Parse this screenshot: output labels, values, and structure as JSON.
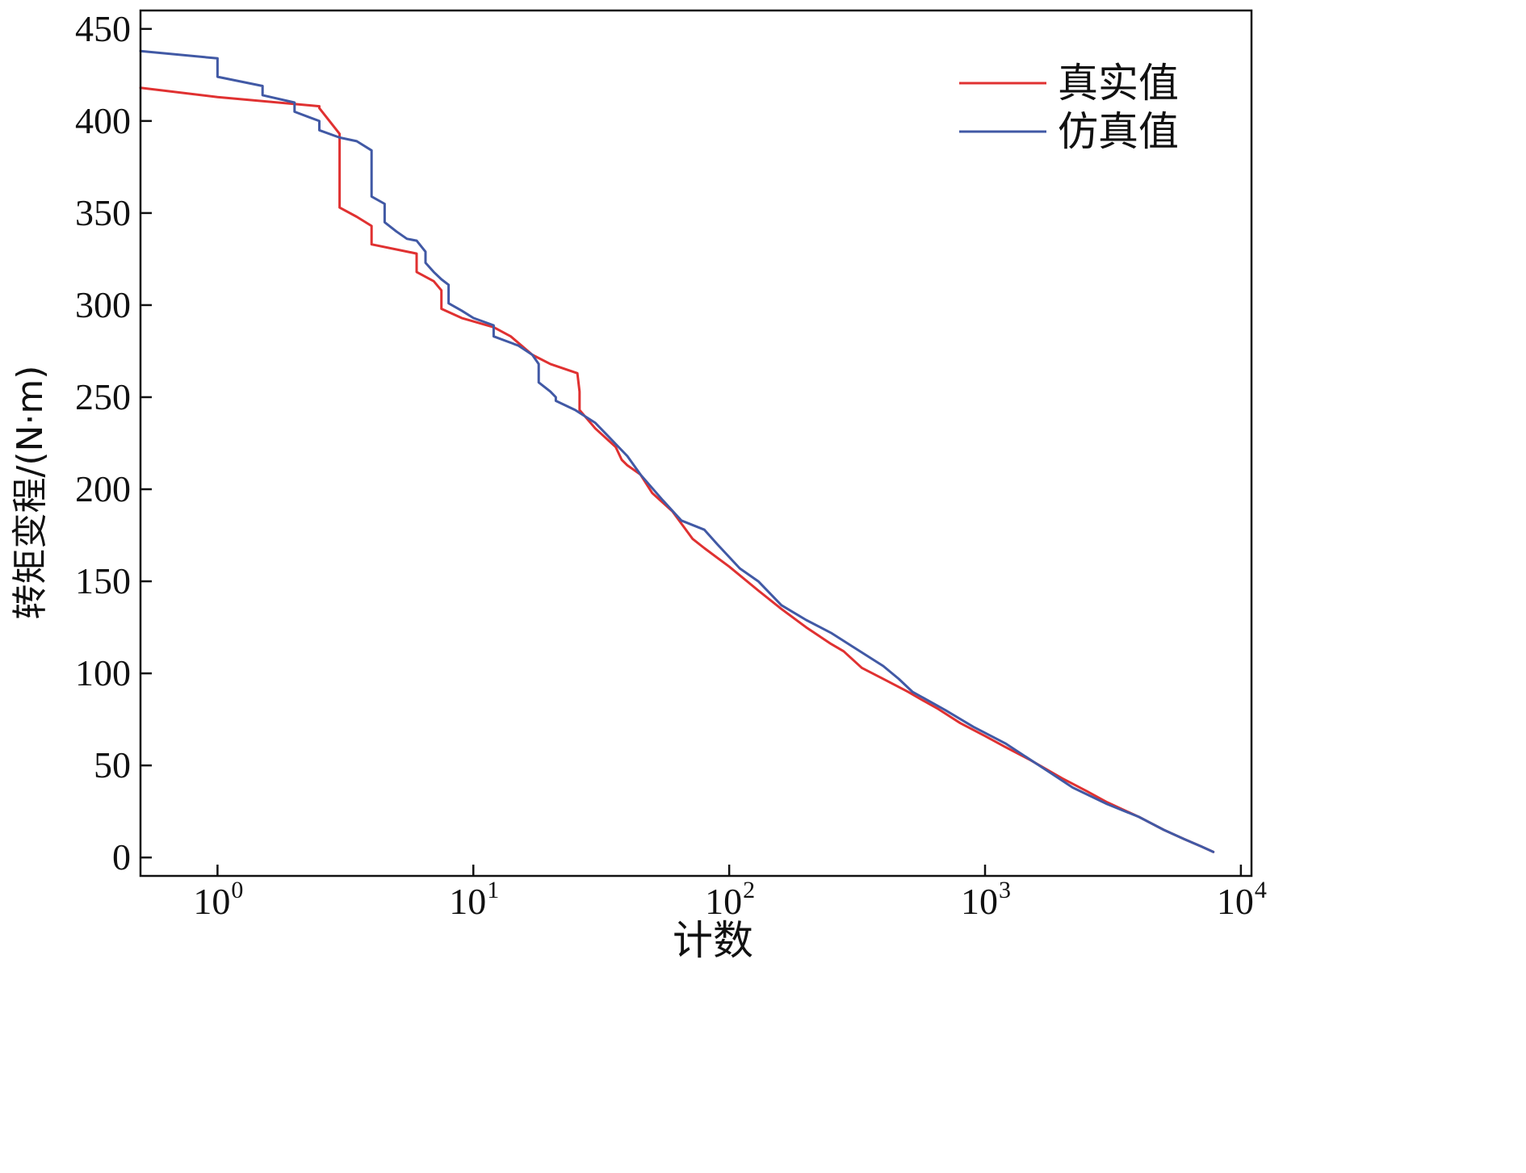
{
  "chart_data": {
    "type": "line",
    "title": "",
    "xlabel": "计数",
    "ylabel": "转矩变程/(N·m)",
    "xscale": "log",
    "xlim": [
      0.5,
      11000
    ],
    "ylim": [
      -10,
      460
    ],
    "x_ticks": [
      {
        "value": 1,
        "base": "10",
        "exp": "0"
      },
      {
        "value": 10,
        "base": "10",
        "exp": "1"
      },
      {
        "value": 100,
        "base": "10",
        "exp": "2"
      },
      {
        "value": 1000,
        "base": "10",
        "exp": "3"
      },
      {
        "value": 10000,
        "base": "10",
        "exp": "4"
      }
    ],
    "y_ticks": [
      0,
      50,
      100,
      150,
      200,
      250,
      300,
      350,
      400,
      450
    ],
    "grid": false,
    "legend": "top-right",
    "series": [
      {
        "name": "真实值",
        "color": "#e03131",
        "x": [
          0.5,
          1,
          2.5,
          2.5,
          3,
          3,
          3.5,
          4,
          4,
          6,
          6,
          7,
          7.5,
          7.5,
          9,
          12,
          14,
          17,
          20,
          25.5,
          26,
          26,
          30,
          36,
          38,
          40,
          45,
          50,
          60,
          72,
          80,
          100,
          130,
          160,
          200,
          250,
          280,
          330,
          400,
          500,
          560,
          650,
          800,
          1000,
          1200,
          1500,
          2000,
          2500,
          3000,
          4000,
          5000,
          6000,
          7000,
          7800
        ],
        "y": [
          418,
          413,
          408,
          407,
          393,
          353,
          348,
          343,
          333,
          328,
          318,
          313,
          308,
          298,
          293,
          288,
          283,
          273,
          268,
          263,
          253,
          243,
          233,
          223,
          216,
          213,
          208,
          198,
          188,
          173,
          168,
          158,
          145,
          135,
          125,
          116,
          112,
          103,
          97,
          90,
          86,
          81,
          73,
          66,
          60,
          53,
          43,
          36,
          30,
          22,
          15,
          10,
          6,
          3
        ]
      },
      {
        "name": "仿真值",
        "color": "#4159a5",
        "x": [
          0.5,
          1,
          1,
          1.5,
          1.5,
          2,
          2,
          2.5,
          2.5,
          3,
          3.5,
          4,
          4,
          4.5,
          4.5,
          5,
          5.5,
          6,
          6.5,
          6.5,
          7,
          7.5,
          8,
          8,
          9,
          10,
          12,
          12,
          15,
          17,
          18,
          18,
          20,
          21,
          21,
          25,
          30,
          33,
          40,
          45,
          55,
          65,
          80,
          90,
          110,
          130,
          160,
          200,
          250,
          300,
          400,
          460,
          520,
          700,
          900,
          1200,
          1800,
          2200,
          3000,
          4000,
          5000,
          6000,
          7000,
          7800
        ],
        "y": [
          438,
          434,
          424,
          419,
          414,
          410,
          405,
          400,
          395,
          391,
          389,
          384,
          359,
          355,
          345,
          340,
          336,
          335,
          329,
          323,
          318,
          314,
          311,
          301,
          297,
          293,
          289,
          283,
          278,
          273,
          268,
          258,
          253,
          250,
          248,
          243,
          236,
          230,
          218,
          208,
          194,
          183,
          178,
          170,
          157,
          150,
          137,
          129,
          122,
          115,
          104,
          97,
          90,
          80,
          71,
          62,
          46,
          38,
          29,
          22,
          15,
          10,
          6,
          3
        ]
      }
    ]
  }
}
